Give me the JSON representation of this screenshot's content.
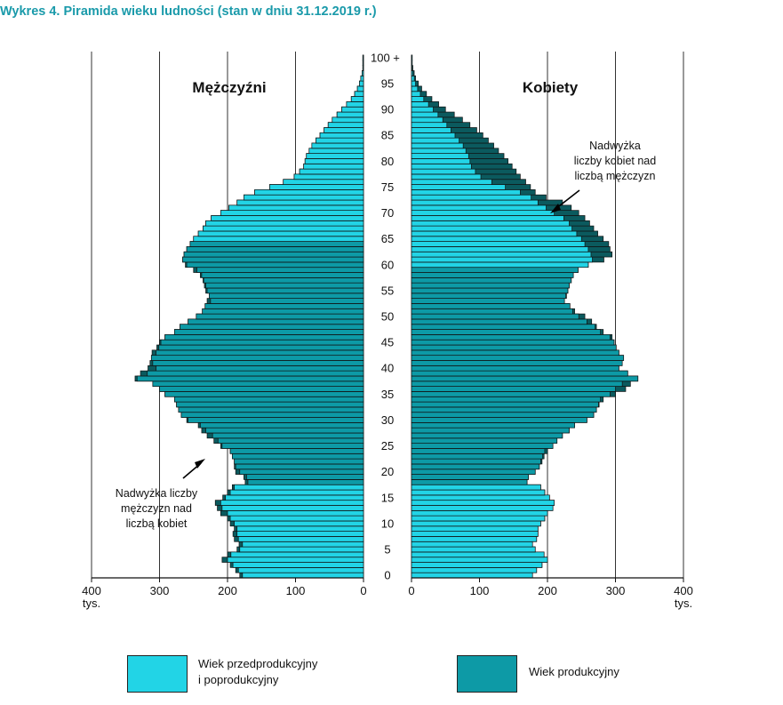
{
  "title": "Wykres 4. Piramida wieku ludności (stan w dniu 31.12.2019 r.)",
  "colors": {
    "light": "#22d4e6",
    "mid": "#0d9aa6",
    "dark": "#0b5a5e",
    "title": "#1a9aaa",
    "grid": "#333333"
  },
  "legend": {
    "non_working": {
      "line1": "Wiek przedprodukcyjny",
      "line2": "i poprodukcyjny"
    },
    "working": {
      "label": "Wiek produkcyjny"
    }
  },
  "annotations": {
    "female_surplus": [
      "Nadwyżka",
      "liczby kobiet nad",
      "liczbą mężczyzn"
    ],
    "male_surplus": [
      "Nadwyżka liczby",
      "mężczyzn nad",
      "liczbą kobiet"
    ]
  },
  "chart_data": {
    "type": "bar",
    "subtype": "population-pyramid",
    "title": "Wykres 4. Piramida wieku ludności (stan w dniu 31.12.2019 r.)",
    "unit_label": "tys.",
    "left_title": "Mężczyźni",
    "right_title": "Kobiety",
    "left_axis_ticks": [
      "400",
      "300",
      "200",
      "100",
      "0"
    ],
    "right_axis_ticks": [
      "0",
      "100",
      "200",
      "300",
      "400"
    ],
    "age_ticks": [
      "0",
      "5",
      "10",
      "15",
      "20",
      "25",
      "30",
      "35",
      "40",
      "45",
      "50",
      "55",
      "60",
      "65",
      "70",
      "75",
      "80",
      "85",
      "90",
      "95",
      "100 +"
    ],
    "xlim": [
      0,
      400
    ],
    "ages": [
      0,
      1,
      2,
      3,
      4,
      5,
      6,
      7,
      8,
      9,
      10,
      11,
      12,
      13,
      14,
      15,
      16,
      17,
      18,
      19,
      20,
      21,
      22,
      23,
      24,
      25,
      26,
      27,
      28,
      29,
      30,
      31,
      32,
      33,
      34,
      35,
      36,
      37,
      38,
      39,
      40,
      41,
      42,
      43,
      44,
      45,
      46,
      47,
      48,
      49,
      50,
      51,
      52,
      53,
      54,
      55,
      56,
      57,
      58,
      59,
      60,
      61,
      62,
      63,
      64,
      65,
      66,
      67,
      68,
      69,
      70,
      71,
      72,
      73,
      74,
      75,
      76,
      77,
      78,
      79,
      80,
      81,
      82,
      83,
      84,
      85,
      86,
      87,
      88,
      89,
      90,
      91,
      92,
      93,
      94,
      95,
      96,
      97,
      98,
      99,
      100
    ],
    "working_age": {
      "male": [
        18,
        64
      ],
      "female": [
        18,
        59
      ]
    },
    "series": [
      {
        "name": "Mężczyźni",
        "values": [
          182,
          188,
          196,
          208,
          200,
          186,
          183,
          190,
          192,
          190,
          196,
          200,
          210,
          215,
          218,
          207,
          200,
          193,
          174,
          176,
          188,
          190,
          190,
          193,
          196,
          210,
          220,
          230,
          238,
          243,
          260,
          268,
          272,
          275,
          278,
          292,
          300,
          310,
          336,
          328,
          317,
          314,
          312,
          311,
          304,
          300,
          292,
          278,
          270,
          258,
          246,
          237,
          233,
          230,
          227,
          232,
          234,
          236,
          240,
          250,
          262,
          266,
          264,
          260,
          255,
          250,
          243,
          236,
          232,
          224,
          210,
          198,
          186,
          176,
          160,
          138,
          118,
          102,
          94,
          88,
          86,
          84,
          80,
          76,
          70,
          64,
          58,
          52,
          46,
          39,
          32,
          25,
          18,
          13,
          9,
          6,
          4,
          2,
          1,
          1,
          1
        ]
      },
      {
        "name": "Kobiety",
        "values": [
          178,
          184,
          192,
          200,
          195,
          182,
          178,
          184,
          186,
          186,
          190,
          196,
          200,
          208,
          210,
          203,
          196,
          190,
          170,
          172,
          182,
          188,
          192,
          195,
          200,
          208,
          214,
          222,
          232,
          240,
          258,
          268,
          272,
          276,
          282,
          300,
          315,
          322,
          333,
          318,
          305,
          310,
          312,
          305,
          301,
          298,
          295,
          282,
          272,
          265,
          255,
          240,
          233,
          225,
          228,
          230,
          232,
          235,
          238,
          245,
          260,
          283,
          295,
          292,
          290,
          282,
          274,
          268,
          262,
          255,
          246,
          235,
          222,
          198,
          182,
          175,
          168,
          160,
          154,
          148,
          142,
          136,
          128,
          121,
          113,
          105,
          96,
          86,
          75,
          63,
          50,
          40,
          30,
          22,
          15,
          10,
          6,
          4,
          2,
          1,
          1
        ]
      }
    ],
    "equal_counterpart": {
      "description": "Overlap of both sexes; the remainder beyond it is the surplus shown in dark.",
      "values": [
        178,
        184,
        192,
        200,
        195,
        182,
        178,
        184,
        186,
        186,
        190,
        196,
        200,
        208,
        210,
        203,
        196,
        190,
        170,
        172,
        182,
        188,
        190,
        193,
        196,
        208,
        214,
        222,
        232,
        240,
        258,
        268,
        272,
        275,
        278,
        292,
        300,
        310,
        333,
        318,
        305,
        310,
        312,
        305,
        301,
        298,
        292,
        278,
        270,
        258,
        246,
        237,
        233,
        225,
        227,
        230,
        232,
        235,
        238,
        245,
        260,
        266,
        264,
        260,
        255,
        250,
        243,
        236,
        232,
        224,
        210,
        198,
        186,
        176,
        160,
        138,
        118,
        102,
        94,
        88,
        86,
        84,
        80,
        76,
        70,
        64,
        58,
        52,
        46,
        39,
        32,
        25,
        18,
        13,
        9,
        6,
        4,
        2,
        1,
        1,
        1
      ]
    }
  }
}
